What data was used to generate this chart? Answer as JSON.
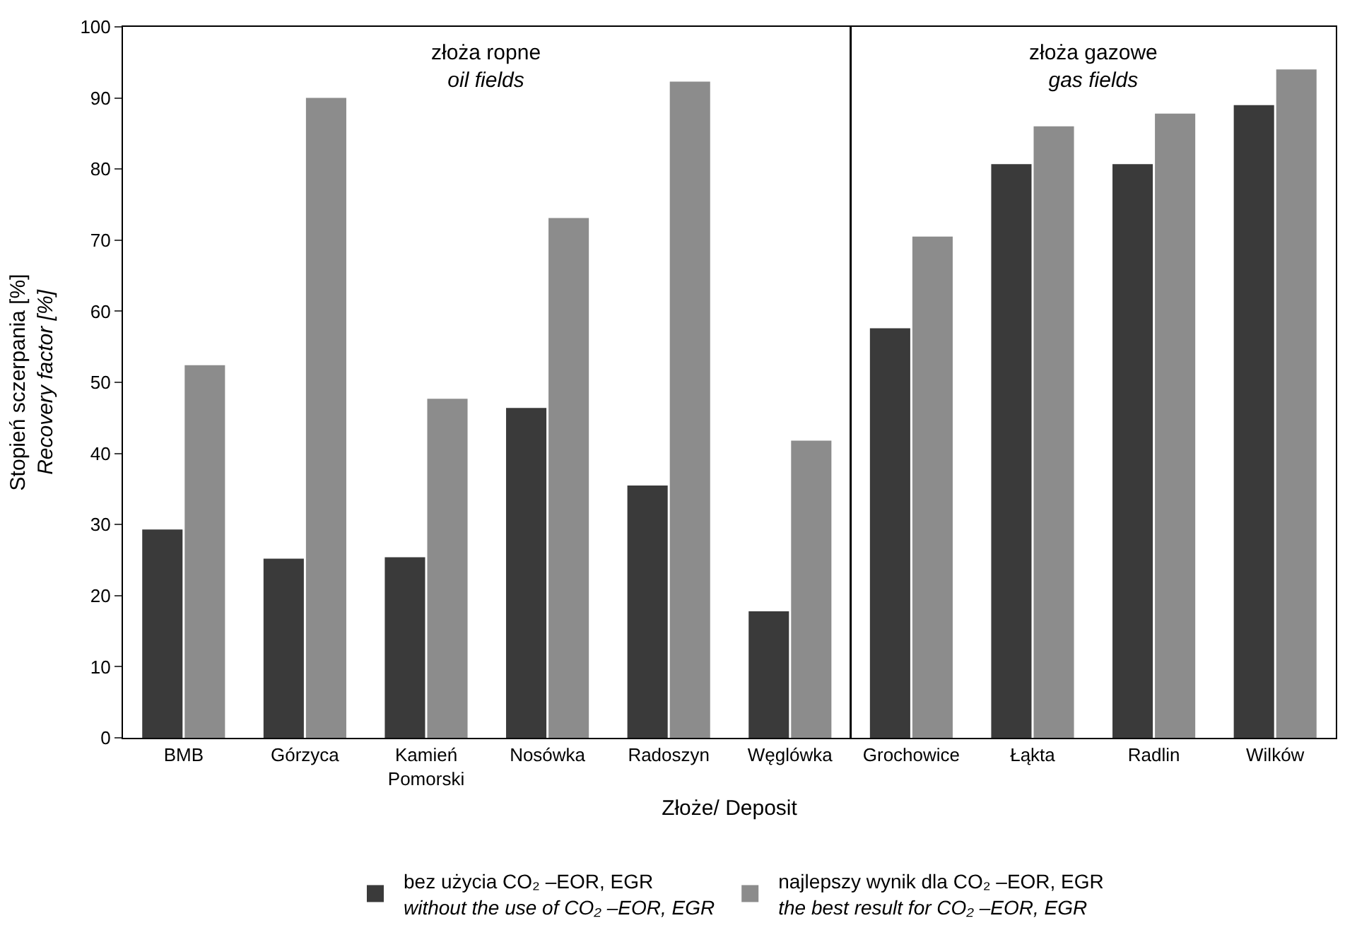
{
  "chart_data": {
    "type": "bar",
    "xlabel": "Złoże/ Deposit",
    "ylabel": "Stopień sczerpania [%]\nRecovery factor [%]",
    "categories": [
      "BMB",
      "Górzyca",
      "Kamień\nPomorski",
      "Nosówka",
      "Radoszyn",
      "Węglówka",
      "Grochowice",
      "Łąkta",
      "Radlin",
      "Wilków"
    ],
    "series": [
      {
        "name": "bez użycia CO₂ –EOR, EGR\nwithout the use of CO₂ –EOR, EGR",
        "color": "#3a3a3a",
        "values": [
          29.3,
          25.2,
          25.4,
          46.4,
          35.5,
          17.8,
          57.6,
          80.7,
          80.7,
          89.0
        ]
      },
      {
        "name": "najlepszy wynik dla CO₂ –EOR, EGR\nthe best result for CO₂ –EOR, EGR",
        "color": "#8c8c8c",
        "values": [
          52.4,
          90.0,
          47.7,
          73.1,
          92.3,
          41.8,
          70.5,
          86.0,
          87.8,
          94.0
        ]
      }
    ],
    "annotations": [
      "złoża ropne\noil fields",
      "złoża gazowe\ngas fields"
    ],
    "ylim": [
      0,
      100
    ],
    "yticks": [
      0,
      10,
      20,
      30,
      40,
      50,
      60,
      70,
      80,
      90,
      100
    ],
    "legend": "bottom"
  }
}
